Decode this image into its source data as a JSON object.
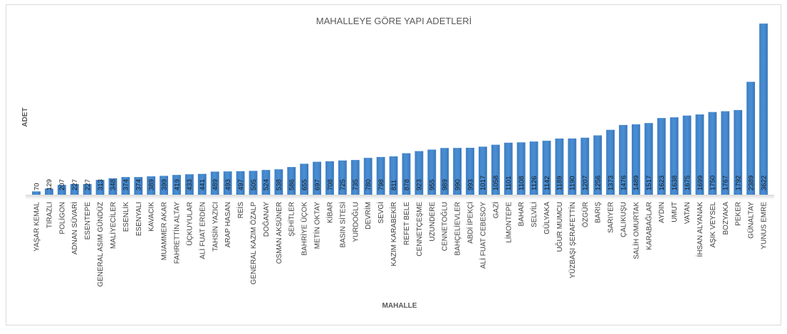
{
  "chart_data": {
    "type": "bar",
    "title": "MAHALLEYE GÖRE YAPI ADETLERİ",
    "xlabel": "MAHALLE",
    "ylabel": "ADET",
    "bar_color": "#4a8fd4",
    "grid": false,
    "legend": "none",
    "ylim": [
      0,
      3700
    ],
    "categories": [
      "YAŞAR KEMAL",
      "TIRAZLI",
      "POLİGON",
      "ADNAN SÜVARİ",
      "ESENTEPE",
      "GENERAL ASIM GÜNDÜZ",
      "MALİYECİLER",
      "ESENLİK",
      "ESENYALI",
      "KAVACIK",
      "MUAMMER AKAR",
      "FAHRETTİN ALTAY",
      "ÜÇKUYULAR",
      "ALİ FUAT ERDEN",
      "TAHSİN YAZICI",
      "ARAP HASAN",
      "REİS",
      "GENERAL KAZIM ÖZALP",
      "DOĞANAY",
      "OSMAN AKSÜNER",
      "ŞEHİTLER",
      "BAHRİYE ÜÇOK",
      "METİN OKTAY",
      "KİBAR",
      "BASIN SİTESİ",
      "YURDOĞLU",
      "DEVRİM",
      "SEVGİ",
      "KAZIM KARABEKİR",
      "REFET BELE",
      "CENNETÇEŞME",
      "UZUNDERE",
      "CENNETOĞLU",
      "BAHÇELİEVLER",
      "ABDİ İPEKÇİ",
      "ALİ FUAT CEBESOY",
      "GAZİ",
      "LİMONTEPE",
      "BAHAR",
      "SELVİLİ",
      "GÜLYAKA",
      "UĞUR MUMCU",
      "YÜZBAŞI ŞERAFETTİN",
      "ÖZGÜR",
      "BARIŞ",
      "SARIYER",
      "ÇALIKUŞU",
      "SALİH OMURTAK",
      "KARABAĞLAR",
      "AYDIN",
      "UMUT",
      "VATAN",
      "İHSAN ALYANAK",
      "AŞIK VEYSEL",
      "BOZYAKA",
      "PEKER",
      "GÜNALTAY",
      "YUNUS EMRE"
    ],
    "values": [
      70,
      129,
      207,
      227,
      227,
      313,
      348,
      374,
      374,
      389,
      399,
      419,
      433,
      441,
      489,
      493,
      497,
      505,
      524,
      538,
      586,
      655,
      697,
      708,
      725,
      735,
      780,
      798,
      811,
      878,
      923,
      955,
      989,
      990,
      993,
      1017,
      1058,
      1101,
      1108,
      1126,
      1142,
      1189,
      1190,
      1207,
      1256,
      1373,
      1476,
      1489,
      1517,
      1623,
      1638,
      1675,
      1699,
      1750,
      1767,
      1792,
      2389,
      3622
    ]
  }
}
